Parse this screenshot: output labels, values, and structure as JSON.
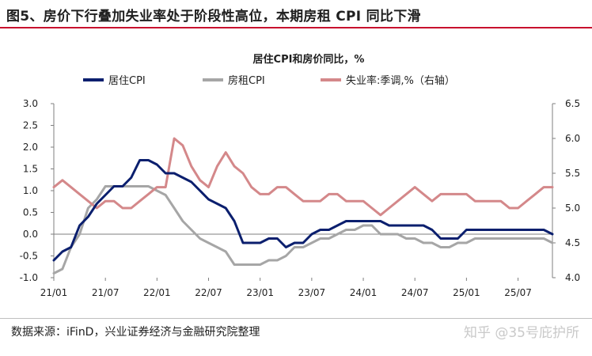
{
  "figure": {
    "title": "图5、房价下行叠加失业率处于阶段性高位，本期房租 CPI 同比下滑",
    "source": "数据来源：iFinD，兴业证券经济与金融研究院整理",
    "watermark": "知乎 @35号庇护所"
  },
  "chart_data": {
    "type": "line",
    "title": "居住CPI和房价同比，%",
    "x_tick_labels": [
      "21/01",
      "21/07",
      "22/01",
      "22/07",
      "23/01",
      "23/07",
      "24/01",
      "24/07",
      "25/01",
      "25/07"
    ],
    "x": [
      "2021-01",
      "2021-02",
      "2021-03",
      "2021-04",
      "2021-05",
      "2021-06",
      "2021-07",
      "2021-08",
      "2021-09",
      "2021-10",
      "2021-11",
      "2021-12",
      "2022-01",
      "2022-02",
      "2022-03",
      "2022-04",
      "2022-05",
      "2022-06",
      "2022-07",
      "2022-08",
      "2022-09",
      "2022-10",
      "2022-11",
      "2022-12",
      "2023-01",
      "2023-02",
      "2023-03",
      "2023-04",
      "2023-05",
      "2023-06",
      "2023-07",
      "2023-08",
      "2023-09",
      "2023-10",
      "2023-11",
      "2023-12",
      "2024-01",
      "2024-02",
      "2024-03",
      "2024-04",
      "2024-05",
      "2024-06",
      "2024-07",
      "2024-08",
      "2024-09",
      "2024-10",
      "2024-11",
      "2024-12",
      "2025-01",
      "2025-02",
      "2025-03",
      "2025-04",
      "2025-05",
      "2025-06",
      "2025-07",
      "2025-08",
      "2025-09",
      "2025-10",
      "2025-11"
    ],
    "y_left": {
      "range": [
        -1.0,
        3.0
      ],
      "ticks": [
        "3.0",
        "2.5",
        "2.0",
        "1.5",
        "1.0",
        "0.5",
        "0.0",
        "-0.5",
        "-1.0"
      ]
    },
    "y_right": {
      "range": [
        4.0,
        6.5
      ],
      "ticks": [
        "6.5",
        "6.0",
        "5.5",
        "5.0",
        "4.5",
        "4.0"
      ],
      "label": "右轴"
    },
    "legend_position": "top",
    "series": [
      {
        "name": "居住CPI",
        "axis": "left",
        "color": "#0b1f6e",
        "values": [
          -0.6,
          -0.4,
          -0.3,
          0.2,
          0.4,
          0.7,
          0.9,
          1.1,
          1.1,
          1.3,
          1.7,
          1.7,
          1.6,
          1.4,
          1.4,
          1.3,
          1.2,
          1.0,
          0.8,
          0.7,
          0.6,
          0.3,
          -0.2,
          -0.2,
          -0.2,
          -0.1,
          -0.1,
          -0.3,
          -0.2,
          -0.2,
          0.0,
          0.1,
          0.1,
          0.2,
          0.3,
          0.3,
          0.3,
          0.3,
          0.3,
          0.2,
          0.2,
          0.2,
          0.2,
          0.2,
          0.1,
          -0.1,
          -0.1,
          -0.1,
          0.1,
          0.1,
          0.1,
          0.1,
          0.1,
          0.1,
          0.1,
          0.1,
          0.1,
          0.1,
          0.0
        ]
      },
      {
        "name": "房租CPI",
        "axis": "left",
        "color": "#a6a6a6",
        "values": [
          -0.9,
          -0.8,
          -0.3,
          0.0,
          0.6,
          0.8,
          1.1,
          1.1,
          1.1,
          1.1,
          1.1,
          1.1,
          1.0,
          0.9,
          0.6,
          0.3,
          0.1,
          -0.1,
          -0.2,
          -0.3,
          -0.4,
          -0.7,
          -0.7,
          -0.7,
          -0.7,
          -0.6,
          -0.6,
          -0.5,
          -0.3,
          -0.3,
          -0.2,
          -0.1,
          -0.1,
          0.0,
          0.1,
          0.1,
          0.2,
          0.2,
          0.0,
          0.0,
          0.0,
          -0.1,
          -0.1,
          -0.2,
          -0.2,
          -0.3,
          -0.3,
          -0.2,
          -0.2,
          -0.1,
          -0.1,
          -0.1,
          -0.1,
          -0.1,
          -0.1,
          -0.1,
          -0.1,
          -0.1,
          -0.2
        ]
      },
      {
        "name": "失业率:季调,%（右轴）",
        "axis": "right",
        "color": "#d4888a",
        "values": [
          5.3,
          5.4,
          5.3,
          5.2,
          5.1,
          5.0,
          5.1,
          5.1,
          5.0,
          5.0,
          5.1,
          5.2,
          5.3,
          5.3,
          6.0,
          5.9,
          5.6,
          5.4,
          5.3,
          5.6,
          5.8,
          5.6,
          5.5,
          5.3,
          5.2,
          5.2,
          5.3,
          5.3,
          5.2,
          5.1,
          5.1,
          5.1,
          5.2,
          5.2,
          5.1,
          5.1,
          5.1,
          5.0,
          4.9,
          5.0,
          5.1,
          5.2,
          5.3,
          5.2,
          5.1,
          5.2,
          5.2,
          5.2,
          5.2,
          5.1,
          5.1,
          5.1,
          5.1,
          5.0,
          5.0,
          5.1,
          5.2,
          5.3,
          5.3
        ]
      }
    ]
  }
}
